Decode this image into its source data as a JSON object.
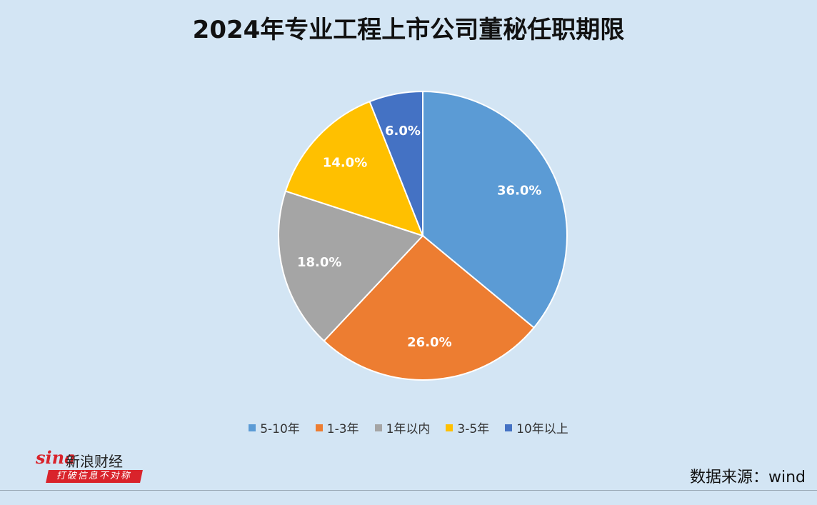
{
  "title": "2024年专业工程上市公司董秘任职期限",
  "chart_data": {
    "type": "pie",
    "title": "2024年专业工程上市公司董秘任职期限",
    "slices": [
      {
        "name": "5-10年",
        "value": 36.0,
        "label": "36.0%",
        "color": "#5b9bd5"
      },
      {
        "name": "1-3年",
        "value": 26.0,
        "label": "26.0%",
        "color": "#ed7d31"
      },
      {
        "name": "1年以内",
        "value": 18.0,
        "label": "18.0%",
        "color": "#a5a5a5"
      },
      {
        "name": "3-5年",
        "value": 14.0,
        "label": "14.0%",
        "color": "#ffc000"
      },
      {
        "name": "10年以上",
        "value": 6.0,
        "label": "6.0%",
        "color": "#4472c4"
      }
    ],
    "legend_position": "bottom"
  },
  "logo": {
    "brand": "sina",
    "name": "新浪财经",
    "slogan": "打破信息不对称"
  },
  "source": "数据来源：wind"
}
